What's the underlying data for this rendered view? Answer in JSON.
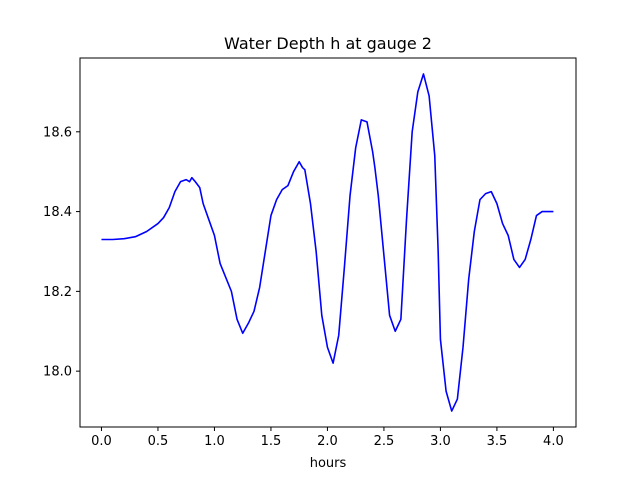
{
  "chart_data": {
    "type": "line",
    "title": "Water Depth h at gauge 2",
    "xlabel": "hours",
    "ylabel": "",
    "xlim": [
      -0.19,
      4.2
    ],
    "ylim": [
      17.86,
      18.785
    ],
    "x_ticks": [
      0.0,
      0.5,
      1.0,
      1.5,
      2.0,
      2.5,
      3.0,
      3.5,
      4.0
    ],
    "x_tick_labels": [
      "0.0",
      "0.5",
      "1.0",
      "1.5",
      "2.0",
      "2.5",
      "3.0",
      "3.5",
      "4.0"
    ],
    "y_ticks": [
      18.0,
      18.2,
      18.4,
      18.6
    ],
    "y_tick_labels": [
      "18.0",
      "18.2",
      "18.4",
      "18.6"
    ],
    "grid": false,
    "series": [
      {
        "color": "#0000ff",
        "x": [
          0.0,
          0.1,
          0.2,
          0.3,
          0.4,
          0.5,
          0.55,
          0.6,
          0.65,
          0.7,
          0.75,
          0.78,
          0.8,
          0.83,
          0.87,
          0.9,
          0.95,
          1.0,
          1.05,
          1.1,
          1.15,
          1.2,
          1.25,
          1.3,
          1.35,
          1.4,
          1.45,
          1.5,
          1.55,
          1.6,
          1.65,
          1.7,
          1.75,
          1.78,
          1.8,
          1.85,
          1.9,
          1.95,
          2.0,
          2.05,
          2.1,
          2.15,
          2.2,
          2.25,
          2.3,
          2.35,
          2.4,
          2.42,
          2.45,
          2.5,
          2.55,
          2.6,
          2.65,
          2.7,
          2.75,
          2.8,
          2.85,
          2.9,
          2.95,
          2.98,
          3.0,
          3.05,
          3.1,
          3.15,
          3.2,
          3.25,
          3.3,
          3.35,
          3.4,
          3.45,
          3.5,
          3.55,
          3.6,
          3.65,
          3.7,
          3.75,
          3.8,
          3.85,
          3.9,
          3.95,
          4.0
        ],
        "y": [
          18.33,
          18.33,
          18.332,
          18.337,
          18.35,
          18.37,
          18.385,
          18.41,
          18.45,
          18.475,
          18.48,
          18.475,
          18.485,
          18.475,
          18.46,
          18.42,
          18.38,
          18.34,
          18.27,
          18.235,
          18.2,
          18.13,
          18.095,
          18.12,
          18.15,
          18.21,
          18.3,
          18.39,
          18.43,
          18.455,
          18.465,
          18.5,
          18.525,
          18.51,
          18.505,
          18.42,
          18.3,
          18.14,
          18.06,
          18.02,
          18.09,
          18.26,
          18.44,
          18.56,
          18.63,
          18.625,
          18.55,
          18.51,
          18.44,
          18.29,
          18.14,
          18.1,
          18.13,
          18.38,
          18.6,
          18.7,
          18.745,
          18.69,
          18.54,
          18.3,
          18.08,
          17.95,
          17.9,
          17.93,
          18.06,
          18.23,
          18.35,
          18.43,
          18.445,
          18.45,
          18.42,
          18.37,
          18.34,
          18.28,
          18.26,
          18.28,
          18.33,
          18.39,
          18.4,
          18.4,
          18.4
        ]
      }
    ]
  }
}
